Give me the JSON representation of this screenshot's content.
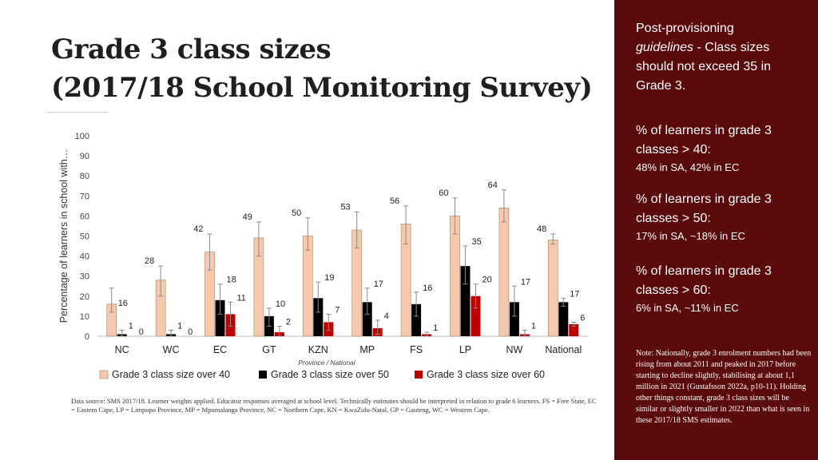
{
  "title": {
    "line1": "Grade 3 class sizes",
    "line2": "(2017/18 School Monitoring Survey)"
  },
  "chart_data": {
    "type": "bar",
    "ylabel": "Percentage of learners in school with…",
    "xlabel": "Province / National",
    "ylim": [
      0,
      100
    ],
    "yticks": [
      0,
      10,
      20,
      30,
      40,
      50,
      60,
      70,
      80,
      90,
      100
    ],
    "categories": [
      "NC",
      "WC",
      "EC",
      "GT",
      "KZN",
      "MP",
      "FS",
      "LP",
      "NW",
      "National"
    ],
    "series": [
      {
        "name": "Grade 3 class size over 40",
        "color": "#f6c9ac",
        "values": [
          16,
          28,
          42,
          49,
          50,
          53,
          56,
          60,
          64,
          48
        ],
        "error_upper": [
          24,
          35,
          51,
          57,
          59,
          62,
          65,
          69,
          73,
          51
        ],
        "error_lower": [
          12,
          20,
          33,
          40,
          43,
          44,
          46,
          51,
          57,
          46
        ]
      },
      {
        "name": "Grade 3 class size over 50",
        "color": "#000000",
        "values": [
          1,
          1,
          18,
          10,
          19,
          17,
          16,
          35,
          17,
          17
        ],
        "error_upper": [
          3,
          3,
          26,
          14,
          27,
          24,
          22,
          45,
          25,
          19
        ],
        "error_lower": [
          0,
          0,
          11,
          5,
          12,
          11,
          10,
          26,
          10,
          15
        ]
      },
      {
        "name": "Grade 3 class size over 60",
        "color": "#c00000",
        "values": [
          0,
          0,
          11,
          2,
          7,
          4,
          1,
          20,
          1,
          6
        ],
        "error_upper": [
          0,
          0,
          17,
          5,
          11,
          8,
          2,
          26,
          3,
          7
        ],
        "error_lower": [
          0,
          0,
          5,
          0,
          3,
          1,
          0,
          14,
          0,
          5
        ]
      }
    ],
    "legend_position": "bottom",
    "grid": false
  },
  "source_note": "Data source: SMS 2017/18. Learner weights applied. Educator responses averaged at school level. Technically estimates should be interpreted in relation to grade 6 learners. FS = Free State, EC = Eastern Cape, LP = Limpopo Province, MP = Mpumalanga Province, NC = Northern Cape, KN = KwaZulu-Natal, GP = Gauteng, WC = Western Cape.",
  "panel": {
    "guideline_pre": "Post-provisioning",
    "guideline_em": "guidelines",
    "guideline_post": "- Class sizes should not exceed 35 in Grade 3.",
    "stats": [
      {
        "head": "% of learners in grade 3 classes > 40:",
        "value": "48% in SA, 42% in EC"
      },
      {
        "head": "% of learners in grade 3 classes > 50:",
        "value": "17% in SA, ~18% in EC"
      },
      {
        "head": "% of learners in grade 3 classes > 60:",
        "value": "6% in SA, ~11% in EC"
      }
    ],
    "note": "Note: Nationally, grade 3 enrolment numbers had been rising from about 2011 and peaked in 2017 before starting to decline slightly, stabilising at about 1,1 million in 2021 (Gustafsson 2022a, p10-11). Holding other things constant, grade 3 class sizes will be similar or slightly smaller in 2022 than what is seen in these 2017/18 SMS estimates."
  }
}
